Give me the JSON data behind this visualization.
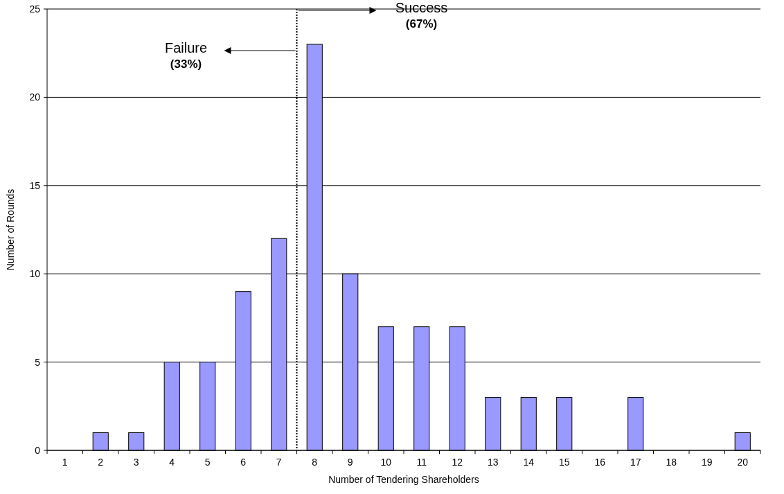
{
  "chart_data": {
    "type": "bar",
    "xlabel": "Number of Tendering Shareholders",
    "ylabel": "Number of Rounds",
    "x": [
      1,
      2,
      3,
      4,
      5,
      6,
      7,
      8,
      9,
      10,
      11,
      12,
      13,
      14,
      15,
      16,
      17,
      18,
      19,
      20
    ],
    "values": [
      0,
      1,
      1,
      5,
      5,
      9,
      12,
      23,
      10,
      7,
      7,
      7,
      3,
      3,
      3,
      0,
      3,
      0,
      0,
      1
    ],
    "color": "#9999ff",
    "xlim": [
      0.5,
      20.5
    ],
    "xticks": [
      1,
      2,
      3,
      4,
      5,
      6,
      7,
      8,
      9,
      10,
      11,
      12,
      13,
      14,
      15,
      16,
      17,
      18,
      19,
      20
    ],
    "ylim": [
      0,
      25
    ],
    "yticks": [
      0,
      5,
      10,
      15,
      20,
      25
    ],
    "grid": "y",
    "ref_lines": [
      {
        "axis": "x",
        "value": 7.5,
        "line_style": "dotted",
        "color": "#000000"
      }
    ],
    "annotations": [
      "Failure\n(33%)",
      "Success\n(67%)"
    ]
  }
}
